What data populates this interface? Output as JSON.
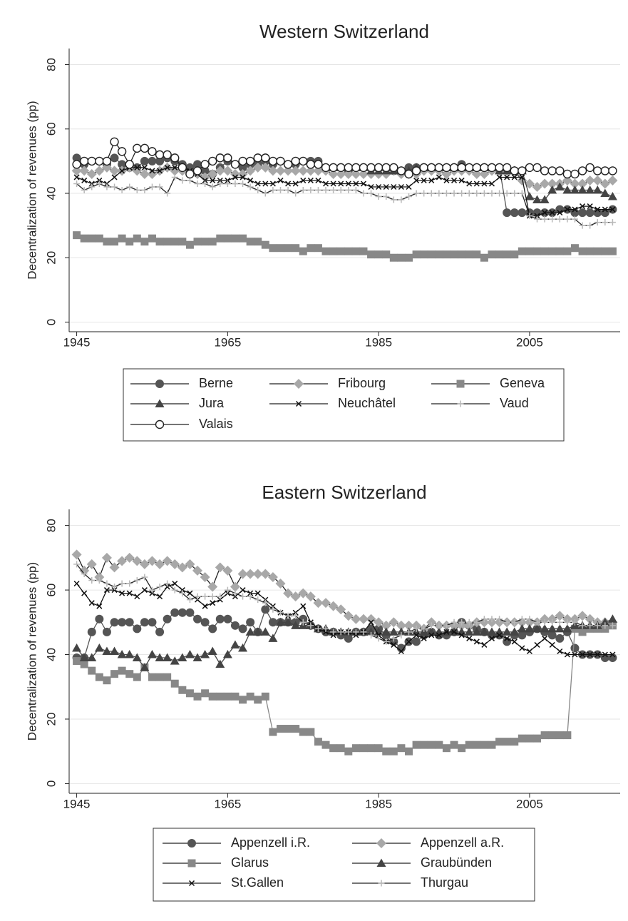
{
  "chart_data": [
    {
      "type": "line",
      "title": "Western Switzerland",
      "ylabel": "Decentralization of revenues (pp)",
      "x": [
        1945,
        1946,
        1947,
        1948,
        1949,
        1950,
        1951,
        1952,
        1953,
        1954,
        1955,
        1956,
        1957,
        1958,
        1959,
        1960,
        1961,
        1962,
        1963,
        1964,
        1965,
        1966,
        1967,
        1968,
        1969,
        1970,
        1971,
        1972,
        1973,
        1974,
        1975,
        1976,
        1977,
        1978,
        1979,
        1980,
        1981,
        1982,
        1983,
        1984,
        1985,
        1986,
        1987,
        1988,
        1989,
        1990,
        1991,
        1992,
        1993,
        1994,
        1995,
        1996,
        1997,
        1998,
        1999,
        2000,
        2001,
        2002,
        2003,
        2004,
        2005,
        2006,
        2007,
        2008,
        2009,
        2010,
        2011,
        2012,
        2013,
        2014,
        2015,
        2016
      ],
      "xlim": [
        1944,
        2017
      ],
      "xticks": [
        1945,
        1965,
        1985,
        2005
      ],
      "ylim": [
        -3,
        85
      ],
      "yticks": [
        0,
        20,
        40,
        60,
        80
      ],
      "grid": true,
      "legend_columns": 3,
      "series": [
        {
          "name": "Berne",
          "color": "#555555",
          "marker": "circle",
          "values": [
            51,
            49,
            50,
            50,
            49,
            51,
            49,
            48,
            48,
            50,
            50,
            50,
            51,
            50,
            49,
            48,
            49,
            47,
            46,
            48,
            50,
            49,
            48,
            49,
            49,
            50,
            49,
            50,
            49,
            49,
            50,
            50,
            50,
            48,
            48,
            48,
            47,
            48,
            48,
            48,
            48,
            48,
            47,
            47,
            48,
            48,
            48,
            48,
            48,
            48,
            48,
            49,
            48,
            48,
            48,
            48,
            48,
            34,
            34,
            34,
            34,
            34,
            34,
            34,
            35,
            35,
            34,
            34,
            34,
            34,
            34,
            35
          ]
        },
        {
          "name": "Fribourg",
          "color": "#a8a8a8",
          "marker": "diamond",
          "values": [
            47,
            47,
            46,
            47,
            48,
            47,
            47,
            48,
            47,
            46,
            46,
            47,
            48,
            47,
            47,
            46,
            46,
            45,
            46,
            47,
            47,
            46,
            46,
            47,
            48,
            48,
            47,
            47,
            47,
            47,
            47,
            47,
            47,
            47,
            46,
            46,
            46,
            46,
            46,
            46,
            46,
            46,
            47,
            46,
            46,
            46,
            47,
            47,
            47,
            46,
            47,
            47,
            47,
            46,
            46,
            47,
            47,
            47,
            47,
            44,
            43,
            42,
            43,
            43,
            43,
            44,
            43,
            43,
            44,
            44,
            43,
            44
          ]
        },
        {
          "name": "Geneva",
          "color": "#888888",
          "marker": "square",
          "values": [
            27,
            26,
            26,
            26,
            25,
            25,
            26,
            25,
            26,
            25,
            26,
            25,
            25,
            25,
            25,
            24,
            25,
            25,
            25,
            26,
            26,
            26,
            26,
            25,
            25,
            24,
            23,
            23,
            23,
            23,
            22,
            23,
            23,
            22,
            22,
            22,
            22,
            22,
            22,
            21,
            21,
            21,
            20,
            20,
            20,
            21,
            21,
            21,
            21,
            21,
            21,
            21,
            21,
            21,
            20,
            21,
            21,
            21,
            21,
            22,
            22,
            22,
            22,
            22,
            22,
            22,
            23,
            22,
            22,
            22,
            22,
            22
          ]
        },
        {
          "name": "Jura",
          "color": "#444444",
          "marker": "triangle",
          "values": [
            null,
            null,
            null,
            null,
            null,
            null,
            null,
            null,
            null,
            null,
            null,
            null,
            null,
            null,
            null,
            null,
            null,
            null,
            null,
            null,
            null,
            null,
            null,
            null,
            null,
            null,
            null,
            null,
            null,
            null,
            null,
            null,
            null,
            null,
            48,
            48,
            48,
            48,
            48,
            47,
            47,
            47,
            47,
            47,
            47,
            48,
            48,
            48,
            48,
            48,
            48,
            48,
            48,
            48,
            48,
            48,
            47,
            47,
            47,
            47,
            39,
            38,
            38,
            41,
            42,
            41,
            41,
            41,
            41,
            41,
            40,
            39
          ]
        },
        {
          "name": "Neuchâtel",
          "color": "#111111",
          "marker": "x",
          "values": [
            45,
            44,
            43,
            44,
            43,
            45,
            47,
            48,
            48,
            48,
            47,
            47,
            48,
            48,
            48,
            47,
            46,
            44,
            44,
            44,
            44,
            45,
            45,
            44,
            43,
            43,
            43,
            44,
            43,
            43,
            44,
            44,
            44,
            43,
            43,
            43,
            43,
            43,
            43,
            42,
            42,
            42,
            42,
            42,
            42,
            44,
            44,
            44,
            45,
            44,
            44,
            44,
            43,
            43,
            43,
            43,
            45,
            45,
            45,
            45,
            33,
            33,
            34,
            34,
            34,
            35,
            35,
            36,
            36,
            35,
            35,
            35
          ]
        },
        {
          "name": "Vaud",
          "color": "#b8b8b8",
          "marker": "plus",
          "values": [
            43,
            41,
            42,
            43,
            42,
            42,
            41,
            42,
            41,
            41,
            42,
            42,
            40,
            45,
            44,
            44,
            43,
            43,
            42,
            43,
            43,
            43,
            43,
            42,
            41,
            40,
            41,
            41,
            41,
            40,
            41,
            41,
            41,
            41,
            41,
            41,
            41,
            41,
            40,
            40,
            39,
            39,
            38,
            38,
            39,
            40,
            40,
            40,
            40,
            40,
            40,
            40,
            40,
            40,
            40,
            40,
            40,
            40,
            40,
            40,
            33,
            32,
            32,
            32,
            32,
            32,
            32,
            30,
            30,
            31,
            31,
            31
          ]
        },
        {
          "name": "Valais",
          "color": "#222222",
          "marker": "hollow-circle",
          "values": [
            49,
            50,
            50,
            50,
            50,
            56,
            53,
            49,
            54,
            54,
            53,
            52,
            52,
            51,
            48,
            46,
            47,
            49,
            50,
            51,
            51,
            49,
            50,
            50,
            51,
            51,
            50,
            50,
            49,
            50,
            50,
            49,
            49,
            48,
            48,
            48,
            48,
            48,
            48,
            48,
            48,
            48,
            48,
            47,
            46,
            47,
            48,
            48,
            48,
            48,
            48,
            48,
            48,
            48,
            48,
            48,
            48,
            48,
            47,
            47,
            48,
            48,
            47,
            47,
            47,
            46,
            46,
            47,
            48,
            47,
            47,
            47
          ]
        }
      ]
    },
    {
      "type": "line",
      "title": "Eastern Switzerland",
      "ylabel": "Decentralization of revenues (pp)",
      "x": [
        1945,
        1946,
        1947,
        1948,
        1949,
        1950,
        1951,
        1952,
        1953,
        1954,
        1955,
        1956,
        1957,
        1958,
        1959,
        1960,
        1961,
        1962,
        1963,
        1964,
        1965,
        1966,
        1967,
        1968,
        1969,
        1970,
        1971,
        1972,
        1973,
        1974,
        1975,
        1976,
        1977,
        1978,
        1979,
        1980,
        1981,
        1982,
        1983,
        1984,
        1985,
        1986,
        1987,
        1988,
        1989,
        1990,
        1991,
        1992,
        1993,
        1994,
        1995,
        1996,
        1997,
        1998,
        1999,
        2000,
        2001,
        2002,
        2003,
        2004,
        2005,
        2006,
        2007,
        2008,
        2009,
        2010,
        2011,
        2012,
        2013,
        2014,
        2015,
        2016
      ],
      "xlim": [
        1944,
        2017
      ],
      "xticks": [
        1945,
        1965,
        1985,
        2005
      ],
      "ylim": [
        -3,
        85
      ],
      "yticks": [
        0,
        20,
        40,
        60,
        80
      ],
      "grid": true,
      "legend_columns": 2,
      "series": [
        {
          "name": "Appenzell i.R.",
          "color": "#555555",
          "marker": "circle",
          "values": [
            39,
            39,
            47,
            51,
            47,
            50,
            50,
            50,
            48,
            50,
            50,
            47,
            51,
            53,
            53,
            53,
            51,
            50,
            48,
            51,
            51,
            49,
            48,
            50,
            47,
            54,
            50,
            50,
            50,
            50,
            51,
            49,
            48,
            47,
            47,
            46,
            45,
            47,
            47,
            48,
            48,
            46,
            44,
            42,
            44,
            44,
            46,
            47,
            46,
            46,
            47,
            50,
            49,
            48,
            47,
            46,
            46,
            44,
            46,
            46,
            47,
            48,
            47,
            46,
            45,
            47,
            42,
            40,
            40,
            40,
            39,
            39
          ]
        },
        {
          "name": "Appenzell a.R.",
          "color": "#a8a8a8",
          "marker": "diamond",
          "values": [
            71,
            66,
            68,
            64,
            70,
            67,
            69,
            70,
            69,
            68,
            69,
            68,
            69,
            68,
            67,
            68,
            66,
            64,
            61,
            67,
            66,
            61,
            65,
            65,
            65,
            65,
            64,
            62,
            59,
            58,
            59,
            58,
            56,
            56,
            55,
            54,
            52,
            51,
            51,
            51,
            50,
            49,
            50,
            49,
            49,
            49,
            48,
            50,
            49,
            49,
            49,
            49,
            49,
            50,
            50,
            50,
            50,
            50,
            50,
            50,
            50,
            50,
            51,
            51,
            52,
            51,
            51,
            52,
            51,
            50,
            50,
            50
          ]
        },
        {
          "name": "Glarus",
          "color": "#888888",
          "marker": "square",
          "values": [
            38,
            37,
            35,
            33,
            32,
            34,
            35,
            34,
            33,
            36,
            33,
            33,
            33,
            31,
            29,
            28,
            27,
            28,
            27,
            27,
            27,
            27,
            26,
            27,
            26,
            27,
            16,
            17,
            17,
            17,
            16,
            16,
            13,
            12,
            11,
            11,
            10,
            11,
            11,
            11,
            11,
            10,
            10,
            11,
            10,
            12,
            12,
            12,
            12,
            11,
            12,
            11,
            12,
            12,
            12,
            12,
            13,
            13,
            13,
            14,
            14,
            14,
            15,
            15,
            15,
            15,
            48,
            47,
            48,
            48,
            48,
            49
          ]
        },
        {
          "name": "Graubünden",
          "color": "#444444",
          "marker": "triangle",
          "values": [
            42,
            39,
            39,
            42,
            41,
            41,
            40,
            40,
            39,
            36,
            40,
            39,
            39,
            38,
            39,
            40,
            39,
            40,
            41,
            37,
            40,
            43,
            42,
            47,
            47,
            47,
            45,
            50,
            50,
            49,
            49,
            49,
            48,
            48,
            47,
            47,
            47,
            47,
            47,
            47,
            47,
            47,
            47,
            47,
            47,
            47,
            47,
            47,
            47,
            47,
            47,
            47,
            47,
            47,
            47,
            47,
            47,
            47,
            47,
            48,
            48,
            48,
            48,
            48,
            48,
            48,
            49,
            49,
            49,
            49,
            50,
            51
          ]
        },
        {
          "name": "St.Gallen",
          "color": "#111111",
          "marker": "x",
          "values": [
            62,
            59,
            56,
            55,
            60,
            60,
            59,
            59,
            58,
            60,
            59,
            58,
            61,
            62,
            60,
            59,
            57,
            55,
            56,
            57,
            59,
            58,
            60,
            59,
            59,
            57,
            55,
            53,
            52,
            53,
            55,
            50,
            48,
            47,
            46,
            47,
            47,
            46,
            47,
            50,
            46,
            44,
            43,
            41,
            44,
            46,
            45,
            46,
            46,
            47,
            47,
            46,
            45,
            44,
            43,
            45,
            46,
            45,
            44,
            42,
            41,
            43,
            45,
            43,
            41,
            40,
            40,
            40,
            40,
            40,
            40,
            40
          ]
        },
        {
          "name": "Thurgau",
          "color": "#b8b8b8",
          "marker": "plus",
          "values": [
            68,
            65,
            63,
            63,
            62,
            61,
            62,
            62,
            63,
            64,
            60,
            61,
            62,
            60,
            59,
            57,
            58,
            58,
            58,
            58,
            60,
            59,
            58,
            58,
            57,
            56,
            54,
            53,
            52,
            52,
            50,
            49,
            48,
            48,
            47,
            47,
            47,
            47,
            47,
            46,
            45,
            44,
            45,
            46,
            47,
            48,
            48,
            49,
            49,
            49,
            50,
            50,
            50,
            50,
            51,
            51,
            51,
            50,
            50,
            51,
            51,
            50,
            50,
            50,
            50,
            50,
            50,
            49,
            49,
            49,
            49,
            49
          ]
        }
      ]
    }
  ]
}
